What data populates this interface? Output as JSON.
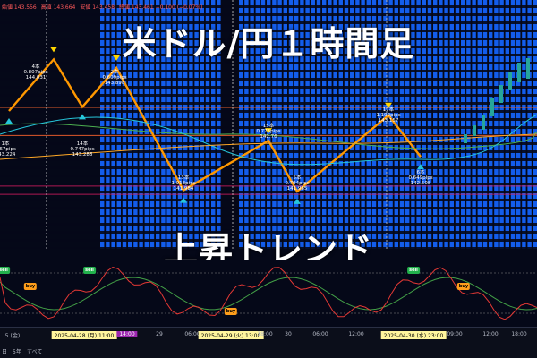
{
  "header": {
    "values": [
      "始値 143.556",
      "高値 143.664",
      "安値 143.458",
      "終値 143.461 −0.100 (−0.07%)"
    ]
  },
  "title": "米ドル/円１時間足",
  "subtitle": "上昇トレンド",
  "annotations": [
    {
      "lines": [
        "4本",
        "0.807pips",
        "144.031"
      ]
    },
    {
      "lines": [
        "2本",
        "0.609pips",
        "143.898"
      ]
    },
    {
      "lines": [
        "14本",
        "0.747pips",
        "143.288"
      ]
    },
    {
      "lines": [
        "1本",
        "0.67pips",
        "143.224"
      ]
    },
    {
      "lines": [
        "13本",
        "1.913pips",
        "141.984"
      ]
    },
    {
      "lines": [
        "15本",
        "0.775pips",
        "142.76"
      ]
    },
    {
      "lines": [
        "5本",
        "0.794pips",
        "141.965"
      ]
    },
    {
      "lines": [
        "17本",
        "1.192pips",
        "143.157"
      ]
    },
    {
      "lines": [
        "6本",
        "0.649pips",
        "142.508"
      ]
    }
  ],
  "signals": [
    "sell",
    "buy",
    "sell",
    "buy",
    "sell",
    "buy"
  ],
  "time_axis": {
    "labels": [
      "5 (金)",
      "2025-04-28 (月)  11:00",
      "14:00",
      "29",
      "06:00",
      "2025-04-29 (火)  13:00",
      "18:00",
      "30",
      "06:00",
      "12:00",
      "2025-04-30 (水)  23:00",
      "09:00",
      "12:00",
      "18:00"
    ],
    "range_buttons": [
      "日",
      "5年",
      "すべて"
    ]
  },
  "colors": {
    "bg": "#050818",
    "band": "#1565ff",
    "zigzag": "#ff9800",
    "ma_green": "#4caf50",
    "ma_cyan": "#26c6da",
    "bull": "#26a69a",
    "bear": "#ef5350",
    "osc_fast": "#e53935",
    "osc_slow": "#43a047"
  },
  "chart_data": {
    "type": "line",
    "title": "米ドル/円１時間足",
    "subtitle": "上昇トレンド",
    "xlabel": "",
    "ylabel": "",
    "zigzag": {
      "name": "",
      "points": [
        {
          "label": "1本",
          "value": 143.224
        },
        {
          "label": "4本",
          "value": 144.031
        },
        {
          "label": "14本",
          "value": 143.288
        },
        {
          "label": "2本",
          "value": 143.898
        },
        {
          "label": "13本",
          "value": 141.984
        },
        {
          "label": "15本",
          "value": 142.76
        },
        {
          "label": "5本",
          "value": 141.965
        },
        {
          "label": "17本",
          "value": 143.157
        },
        {
          "label": "6本",
          "value": 142.508
        }
      ]
    },
    "ylim": [
      141.6,
      144.4
    ],
    "grid": false,
    "legend": "none"
  }
}
